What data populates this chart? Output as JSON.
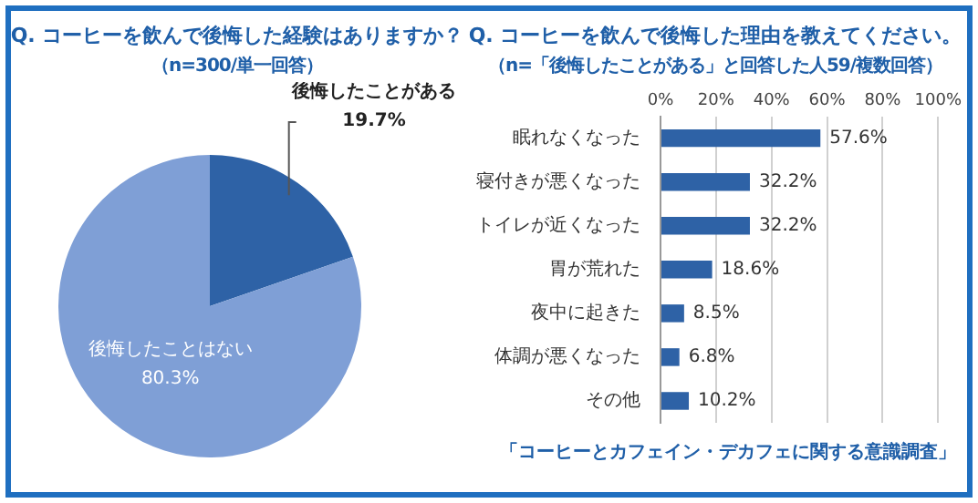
{
  "chart_data": [
    {
      "type": "pie",
      "title": "Q. コーヒーを飲んで後悔した経験はありますか？",
      "subtitle": "（n=300/単一回答）",
      "categories": [
        "後悔したことがある",
        "後悔したことはない"
      ],
      "values": [
        19.7,
        80.3
      ],
      "colors": [
        "#2e62a6",
        "#7f9fd6"
      ],
      "value_labels": [
        "19.7%",
        "80.3%"
      ]
    },
    {
      "type": "bar",
      "orientation": "horizontal",
      "title": "Q. コーヒーを飲んで後悔した理由を教えてください。",
      "subtitle": "（n=「後悔したことがある」と回答した人59/複数回答）",
      "categories": [
        "眠れなくなった",
        "寝付きが悪くなった",
        "トイレが近くなった",
        "胃が荒れた",
        "夜中に起きた",
        "体調が悪くなった",
        "その他"
      ],
      "values": [
        57.6,
        32.2,
        32.2,
        18.6,
        8.5,
        6.8,
        10.2
      ],
      "color": "#2e62a6",
      "value_labels": [
        "57.6%",
        "32.2%",
        "32.2%",
        "18.6%",
        "8.5%",
        "6.8%",
        "10.2%"
      ],
      "xlim": [
        0,
        100
      ],
      "xticks": [
        {
          "value": 0,
          "label": "0%"
        },
        {
          "value": 20,
          "label": "20%"
        },
        {
          "value": 40,
          "label": "40%"
        },
        {
          "value": 60,
          "label": "60%"
        },
        {
          "value": 80,
          "label": "80%"
        },
        {
          "value": 100,
          "label": "100%"
        }
      ],
      "grid": "x",
      "annotations": [
        "「コーヒーとカフェイン・デカフェに関する意識調査」"
      ]
    }
  ]
}
